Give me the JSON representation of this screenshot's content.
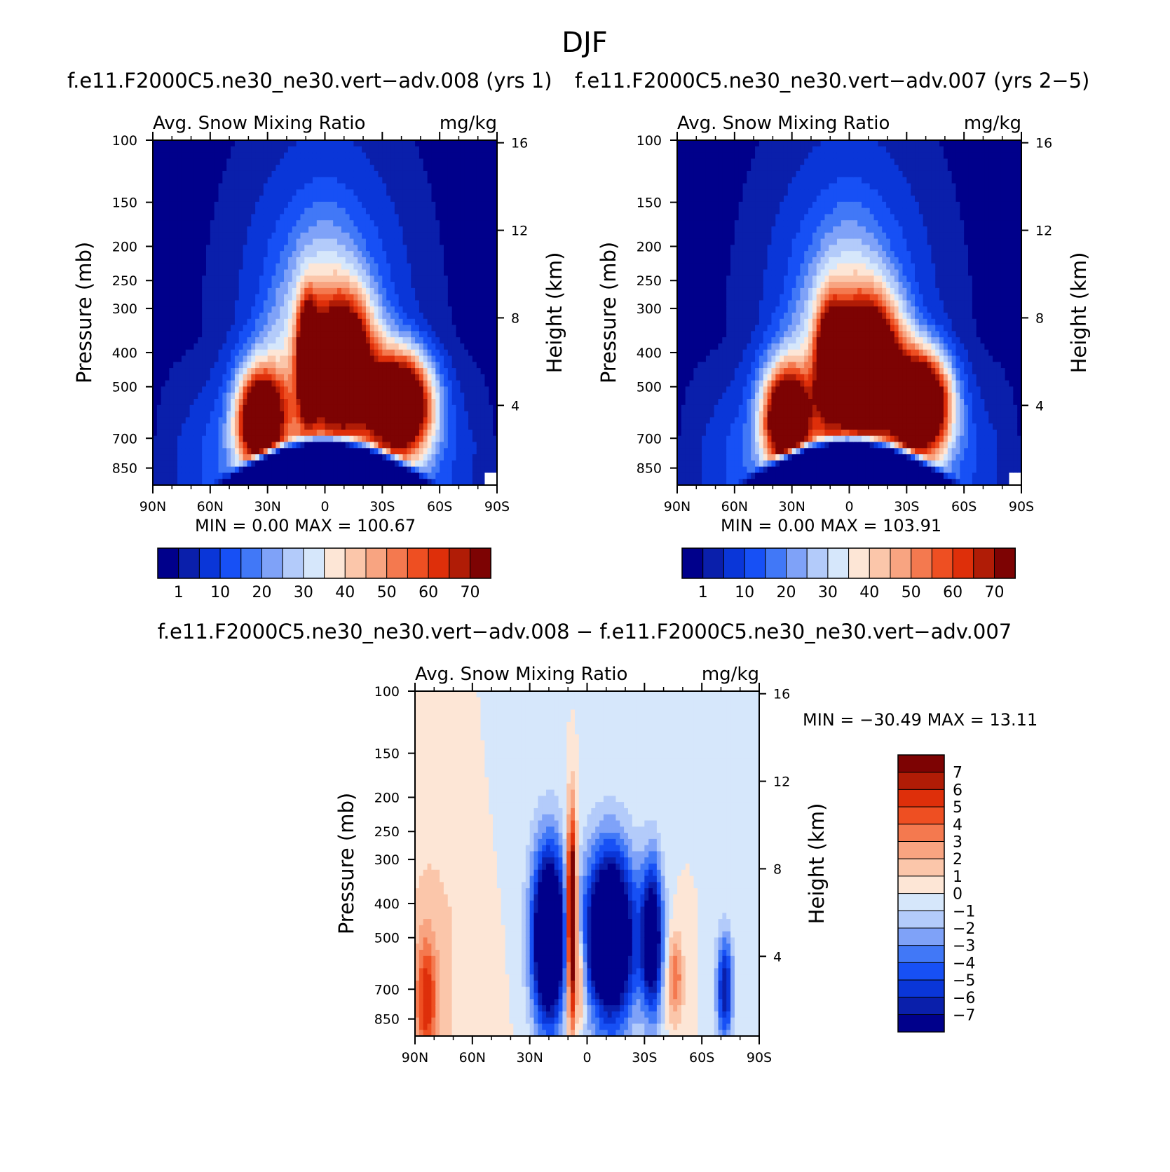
{
  "figure": {
    "title": "DJF"
  },
  "colors": {
    "abs": [
      "#00008b",
      "#0a1fab",
      "#0a36d8",
      "#1750f5",
      "#4178f7",
      "#7fa2f8",
      "#b3cbfa",
      "#d6e7fb",
      "#fde6d6",
      "#fbc6aa",
      "#f8a481",
      "#f4794f",
      "#ee4f22",
      "#de2f0a",
      "#b01c06",
      "#7d0303"
    ],
    "diff": [
      "#00008b",
      "#0a1fab",
      "#0a36d8",
      "#1750f5",
      "#4178f7",
      "#7fa2f8",
      "#b3cbfa",
      "#d6e7fb",
      "#fde6d6",
      "#fbc6aa",
      "#f8a481",
      "#f4794f",
      "#ee4f22",
      "#de2f0a",
      "#b01c06",
      "#7d0303"
    ]
  },
  "chart_data": [
    {
      "type": "heatmap",
      "id": "case1",
      "title": "f.e11.F2000C5.ne30_ne30.vert−adv.008 (yrs 1)",
      "subtitle_left": "Avg. Snow Mixing Ratio",
      "subtitle_right": "mg/kg",
      "ylabel": "Pressure (mb)",
      "y2label": "Height (km)",
      "xticks": [
        "90N",
        "60N",
        "30N",
        "0",
        "30S",
        "60S",
        "90S"
      ],
      "yticks": [
        "100",
        "150",
        "200",
        "250",
        "300",
        "400",
        "500",
        "700",
        "850"
      ],
      "y2ticks": [
        "16",
        "12",
        "8",
        "4"
      ],
      "stats": {
        "min_label": "MIN =",
        "min": "0.00",
        "max_label": "MAX =",
        "max": "100.67"
      },
      "colorbar": {
        "labels": [
          "1",
          "10",
          "20",
          "30",
          "40",
          "50",
          "60",
          "70"
        ]
      },
      "field": {
        "blobs": [
          {
            "lat": -40,
            "p": 560,
            "amp": 105,
            "slat": 11,
            "slp": 0.22
          },
          {
            "lat": 34,
            "p": 620,
            "amp": 92,
            "slat": 8,
            "slp": 0.22
          },
          {
            "lat": 9,
            "p": 410,
            "amp": 82,
            "slat": 3.5,
            "slp": 0.25
          },
          {
            "lat": -10,
            "p": 420,
            "amp": 80,
            "slat": 10,
            "slp": 0.27
          },
          {
            "lat": 0,
            "p": 350,
            "amp": 28,
            "slat": 25,
            "slp": 0.7
          }
        ]
      }
    },
    {
      "type": "heatmap",
      "id": "case2",
      "title": "f.e11.F2000C5.ne30_ne30.vert−adv.007 (yrs 2−5)",
      "subtitle_left": "Avg. Snow Mixing Ratio",
      "subtitle_right": "mg/kg",
      "ylabel": "Pressure (mb)",
      "y2label": "Height (km)",
      "xticks": [
        "90N",
        "60N",
        "30N",
        "0",
        "30S",
        "60S",
        "90S"
      ],
      "yticks": [
        "100",
        "150",
        "200",
        "250",
        "300",
        "400",
        "500",
        "700",
        "850"
      ],
      "y2ticks": [
        "16",
        "12",
        "8",
        "4"
      ],
      "stats": {
        "min_label": "MIN =",
        "min": "0.00",
        "max_label": "MAX =",
        "max": "103.91"
      },
      "colorbar": {
        "labels": [
          "1",
          "10",
          "20",
          "30",
          "40",
          "50",
          "60",
          "70"
        ]
      },
      "field": {
        "blobs": [
          {
            "lat": -38,
            "p": 560,
            "amp": 108,
            "slat": 10,
            "slp": 0.22
          },
          {
            "lat": 33,
            "p": 610,
            "amp": 92,
            "slat": 8,
            "slp": 0.22
          },
          {
            "lat": -10,
            "p": 430,
            "amp": 92,
            "slat": 11,
            "slp": 0.27
          },
          {
            "lat": 10,
            "p": 420,
            "amp": 70,
            "slat": 5,
            "slp": 0.25
          },
          {
            "lat": 0,
            "p": 350,
            "amp": 28,
            "slat": 25,
            "slp": 0.7
          }
        ]
      }
    },
    {
      "type": "heatmap",
      "id": "diff",
      "title": "f.e11.F2000C5.ne30_ne30.vert−adv.008 − f.e11.F2000C5.ne30_ne30.vert−adv.007",
      "subtitle_left": "Avg. Snow Mixing Ratio",
      "subtitle_right": "mg/kg",
      "ylabel": "Pressure (mb)",
      "y2label": "Height (km)",
      "xticks": [
        "90N",
        "60N",
        "30N",
        "0",
        "30S",
        "60S",
        "90S"
      ],
      "yticks": [
        "100",
        "150",
        "200",
        "250",
        "300",
        "400",
        "500",
        "700",
        "850"
      ],
      "y2ticks": [
        "16",
        "12",
        "8",
        "4"
      ],
      "stats": {
        "min_label": "MIN =",
        "min": "−30.49",
        "max_label": "MAX =",
        "max": "13.11"
      },
      "colorbar": {
        "labels": [
          "7",
          "6",
          "5",
          "4",
          "3",
          "2",
          "1",
          "0",
          "−1",
          "−2",
          "−3",
          "−4",
          "−5",
          "−6",
          "−7"
        ]
      },
      "field": {
        "blobs": [
          {
            "lat": 8,
            "p": 450,
            "amp": 14,
            "slat": 1.8,
            "slp": 0.45
          },
          {
            "lat": 3,
            "p": 650,
            "amp": 4,
            "slat": 1.5,
            "slp": 0.2
          },
          {
            "lat": 84,
            "p": 750,
            "amp": 5,
            "slat": 4,
            "slp": 0.3
          },
          {
            "lat": -46,
            "p": 650,
            "amp": 4,
            "slat": 3,
            "slp": 0.2
          },
          {
            "lat": 20,
            "p": 500,
            "amp": -14,
            "slat": 6,
            "slp": 0.4
          },
          {
            "lat": -12,
            "p": 500,
            "amp": -14,
            "slat": 9,
            "slp": 0.4
          },
          {
            "lat": -34,
            "p": 500,
            "amp": -10,
            "slat": 4,
            "slp": 0.35
          },
          {
            "lat": -72,
            "p": 700,
            "amp": -7,
            "slat": 3,
            "slp": 0.25
          },
          {
            "lat": 65,
            "p": 400,
            "amp": 0.8,
            "slat": 22,
            "slp": 1.6
          },
          {
            "lat": 50,
            "p": 200,
            "amp": -0.6,
            "slat": 25,
            "slp": 1.5
          },
          {
            "lat": 0,
            "p": 800,
            "amp": 0.7,
            "slat": 12,
            "slp": 0.08
          }
        ]
      }
    }
  ]
}
